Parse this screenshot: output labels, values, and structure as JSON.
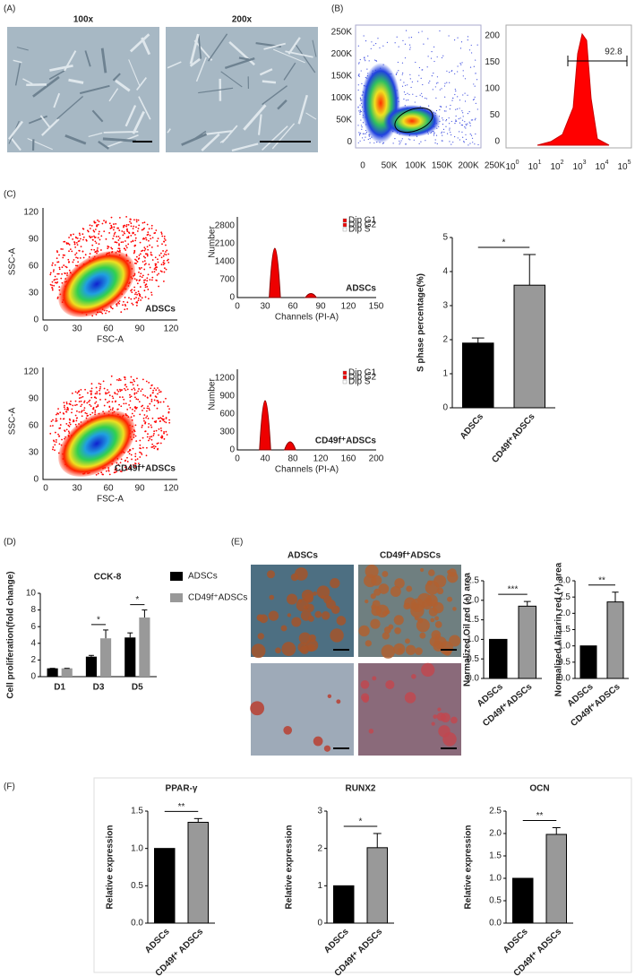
{
  "panel_labels": [
    "(A)",
    "(B)",
    "(C)",
    "(D)",
    "(E)",
    "(F)"
  ],
  "images": {
    "a_left": "100x",
    "a_right": "200x",
    "e_left": "ADSCs",
    "e_right": "CD49f⁺ADSCs"
  },
  "flow": {
    "b_scatter": {
      "yticks": [
        "250K",
        "200K",
        "150K",
        "100K",
        "50K",
        "0"
      ],
      "xticks": [
        "0",
        "50K",
        "100K",
        "150K",
        "200K",
        "250K"
      ]
    },
    "b_hist": {
      "yticks": [
        200,
        150,
        100,
        50,
        0
      ],
      "xticks": [
        {
          "base": "10",
          "exp": "0"
        },
        {
          "base": "10",
          "exp": "1"
        },
        {
          "base": "10",
          "exp": "2"
        },
        {
          "base": "10",
          "exp": "3"
        },
        {
          "base": "10",
          "exp": "4"
        },
        {
          "base": "10",
          "exp": "5"
        }
      ],
      "gate": "92.8"
    },
    "c_scatter": [
      {
        "yticks": [
          120,
          90,
          60,
          30,
          0
        ],
        "xticks": [
          0,
          30,
          60,
          90,
          120
        ],
        "xlabel": "FSC-A",
        "ylabel": "SSC-A",
        "label": "ADSCs"
      },
      {
        "yticks": [
          120,
          90,
          60,
          30,
          0
        ],
        "xticks": [
          0,
          30,
          60,
          90,
          120
        ],
        "xlabel": "FSC-A",
        "ylabel": "SSC-A",
        "label": "CD49f⁺ADSCs"
      }
    ],
    "c_hist": [
      {
        "yticks": [
          2800,
          2100,
          1400,
          700,
          0
        ],
        "xticks": [
          0,
          30,
          60,
          90,
          120,
          150
        ],
        "ylabel": "Number",
        "xlabel": "Channels (PI-A)",
        "label": "ADSCs",
        "legend": [
          "Dip G1",
          "Dip G2",
          "Dip S"
        ]
      },
      {
        "yticks": [
          1200,
          900,
          600,
          300,
          0
        ],
        "xticks": [
          0,
          40,
          80,
          120,
          160,
          200
        ],
        "ylabel": "Number",
        "xlabel": "Channels (PI-A)",
        "label": "CD49f⁺ADSCs",
        "legend": [
          "Dip G1",
          "Dip G2",
          "Dip S"
        ]
      }
    ]
  },
  "chart_data": [
    {
      "type": "bar",
      "ylabel": "S phase percentage(%)",
      "categories": [
        "ADSCs",
        "CD49f⁺ADSCs"
      ],
      "values": [
        1.9,
        3.6
      ],
      "errors": [
        0.15,
        0.9
      ],
      "colors": [
        "#000000",
        "#999999"
      ],
      "ylim": [
        0,
        5
      ],
      "yticks": [
        0,
        1,
        2,
        3,
        4,
        5
      ],
      "significance": "*"
    },
    {
      "type": "bar",
      "title": "CCK-8",
      "ylabel": "Cell proliferation(fold change)",
      "categories": [
        "D1",
        "D3",
        "D5"
      ],
      "series": [
        {
          "name": "ADSCs",
          "color": "#000000",
          "values": [
            1,
            2.4,
            4.7
          ],
          "errors": [
            0,
            0.15,
            0.55
          ]
        },
        {
          "name": "CD49f⁺ADSCs",
          "color": "#999999",
          "values": [
            1,
            4.6,
            7.1
          ],
          "errors": [
            0,
            1.0,
            0.9
          ]
        }
      ],
      "ylim": [
        0,
        10
      ],
      "yticks": [
        0,
        2,
        4,
        6,
        8,
        10
      ],
      "significance": [
        null,
        "*",
        "*"
      ]
    },
    {
      "type": "bar",
      "ylabel": "Normalized Oil red (+) area",
      "categories": [
        "ADSCs",
        "CD49f⁺ADSCs"
      ],
      "values": [
        1,
        1.85
      ],
      "errors": [
        0,
        0.12
      ],
      "colors": [
        "#000000",
        "#999999"
      ],
      "ylim": [
        0,
        2.5
      ],
      "yticks": [
        {
          "value": 0,
          "label": "0.0"
        },
        0.5,
        {
          "value": 1,
          "label": "1.0"
        },
        1.5,
        {
          "value": 2,
          "label": "2.0"
        },
        2.5
      ],
      "significance": "***"
    },
    {
      "type": "bar",
      "ylabel": "Normalized Alizarin red (+) area",
      "categories": [
        "ADSCs",
        "CD49f⁺ADSCs"
      ],
      "values": [
        1,
        2.35
      ],
      "errors": [
        0,
        0.3
      ],
      "colors": [
        "#000000",
        "#999999"
      ],
      "ylim": [
        0,
        3
      ],
      "yticks": [
        {
          "value": 0,
          "label": "0.0"
        },
        0.5,
        {
          "value": 1,
          "label": "1.0"
        },
        1.5,
        {
          "value": 2,
          "label": "2.0"
        },
        2.5,
        {
          "value": 3,
          "label": "3.0"
        }
      ],
      "significance": "**"
    },
    {
      "type": "bar",
      "title": "PPAR-γ",
      "ylabel": "Relative expression",
      "categories": [
        "ADSCs",
        "CD49f⁺ ADSCs"
      ],
      "values": [
        1,
        1.35
      ],
      "errors": [
        0,
        0.05
      ],
      "colors": [
        "#000000",
        "#999999"
      ],
      "ylim": [
        0,
        1.5
      ],
      "yticks": [
        {
          "value": 0,
          "label": "0.0"
        },
        0.5,
        {
          "value": 1,
          "label": "1.0"
        },
        1.5
      ],
      "significance": "**"
    },
    {
      "type": "bar",
      "title": "RUNX2",
      "ylabel": "Relative expression",
      "categories": [
        "ADSCs",
        "CD49f⁺ ADSCs"
      ],
      "values": [
        1,
        2.02
      ],
      "errors": [
        0,
        0.38
      ],
      "colors": [
        "#000000",
        "#999999"
      ],
      "ylim": [
        0,
        3
      ],
      "yticks": [
        0,
        1,
        2,
        3
      ],
      "significance": "*"
    },
    {
      "type": "bar",
      "title": "OCN",
      "ylabel": "Relative expression",
      "categories": [
        "ADSCs",
        "CD49f⁺ ADSCs"
      ],
      "values": [
        1,
        1.98
      ],
      "errors": [
        0,
        0.15
      ],
      "colors": [
        "#000000",
        "#999999"
      ],
      "ylim": [
        0,
        2.5
      ],
      "yticks": [
        {
          "value": 0,
          "label": "0.0"
        },
        0.5,
        {
          "value": 1,
          "label": "1.0"
        },
        1.5,
        {
          "value": 2,
          "label": "2.0"
        },
        2.5
      ],
      "significance": "**"
    }
  ]
}
